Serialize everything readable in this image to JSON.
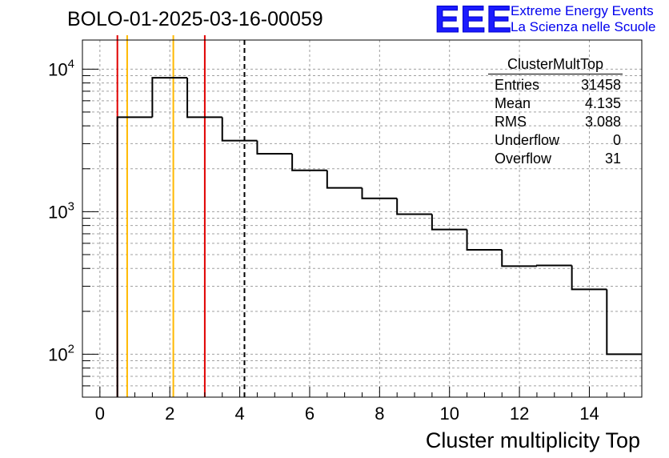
{
  "header": {
    "run_title": "BOLO-01-2025-03-16-00059",
    "logo_text": "EEE",
    "logo_line1": "Extreme Energy Events",
    "logo_line2": "La Scienza nelle Scuole"
  },
  "stats_box": {
    "title": "ClusterMultTop",
    "rows": [
      {
        "label": "Entries",
        "value": "31458"
      },
      {
        "label": "Mean",
        "value": "4.135"
      },
      {
        "label": "RMS",
        "value": "3.088"
      },
      {
        "label": "Underflow",
        "value": "0"
      },
      {
        "label": "Overflow",
        "value": "31"
      }
    ]
  },
  "colors": {
    "red_line": "#e00000",
    "orange_line": "#ffb800",
    "histogram": "#000000",
    "grid": "#a0a0a0"
  },
  "chart_data": {
    "type": "histogram",
    "title": "BOLO-01-2025-03-16-00059",
    "xlabel": "Cluster multiplicity Top",
    "ylabel": "",
    "yscale": "log",
    "xlim": [
      -0.5,
      15.5
    ],
    "ylim": [
      50,
      16000
    ],
    "x_ticks": [
      0,
      2,
      4,
      6,
      8,
      10,
      12,
      14
    ],
    "y_ticks": [
      {
        "value": 100,
        "base": "10",
        "exp": "2"
      },
      {
        "value": 1000,
        "base": "10",
        "exp": "3"
      },
      {
        "value": 10000,
        "base": "10",
        "exp": "4"
      }
    ],
    "bins": [
      {
        "low": 0.5,
        "high": 1.5,
        "count": 4600
      },
      {
        "low": 1.5,
        "high": 2.5,
        "count": 8700
      },
      {
        "low": 2.5,
        "high": 3.5,
        "count": 4600
      },
      {
        "low": 3.5,
        "high": 4.5,
        "count": 3150
      },
      {
        "low": 4.5,
        "high": 5.5,
        "count": 2550
      },
      {
        "low": 5.5,
        "high": 6.5,
        "count": 1950
      },
      {
        "low": 6.5,
        "high": 7.5,
        "count": 1470
      },
      {
        "low": 7.5,
        "high": 8.5,
        "count": 1240
      },
      {
        "low": 8.5,
        "high": 9.5,
        "count": 960
      },
      {
        "low": 9.5,
        "high": 10.5,
        "count": 750
      },
      {
        "low": 10.5,
        "high": 11.5,
        "count": 540
      },
      {
        "low": 11.5,
        "high": 12.5,
        "count": 415
      },
      {
        "low": 12.5,
        "high": 13.5,
        "count": 420
      },
      {
        "low": 13.5,
        "high": 14.5,
        "count": 285
      },
      {
        "low": 14.5,
        "high": 15.5,
        "count": 100
      }
    ],
    "vertical_lines": [
      {
        "name": "red-line-low",
        "x": 0.5,
        "color": "red"
      },
      {
        "name": "orange-line-low",
        "x": 0.78,
        "color": "orange"
      },
      {
        "name": "orange-line-high",
        "x": 2.1,
        "color": "orange"
      },
      {
        "name": "red-line-high",
        "x": 3.0,
        "color": "red"
      },
      {
        "name": "mean-line",
        "x": 4.135,
        "color": "black",
        "dashed": true
      }
    ],
    "grid": true,
    "legend": "top-right"
  }
}
